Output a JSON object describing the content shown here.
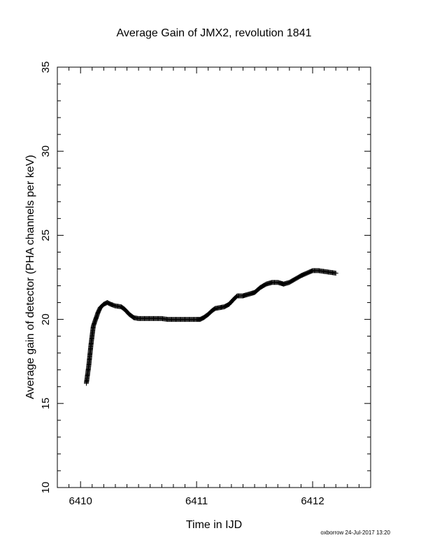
{
  "footer_text": "oxborrow 24-Jul-2017 13:20",
  "chart_data": {
    "type": "scatter",
    "marker": "plus",
    "title": "Average Gain of JMX2, revolution 1841",
    "xlabel": "Time in IJD",
    "ylabel": "Average gain of detector (PHA channels per keV)",
    "xlim": [
      6409.8,
      6412.5
    ],
    "ylim": [
      10,
      35
    ],
    "xticks": [
      6410,
      6411,
      6412
    ],
    "xtick_labels": [
      "6410",
      "6411",
      "6412"
    ],
    "yticks": [
      10,
      15,
      20,
      25,
      30,
      35
    ],
    "ytick_labels": [
      "10",
      "15",
      "20",
      "25",
      "30",
      "35"
    ],
    "grid": false,
    "series": [
      {
        "x": [
          6410.05,
          6410.07,
          6410.09,
          6410.11,
          6410.13,
          6410.15,
          6410.17,
          6410.2,
          6410.23,
          6410.26,
          6410.3,
          6410.35,
          6410.38,
          6410.42,
          6410.46,
          6410.5,
          6410.55,
          6410.6,
          6410.65,
          6410.7,
          6410.75,
          6410.8,
          6410.85,
          6410.9,
          6410.95,
          6411.0,
          6411.03,
          6411.06,
          6411.1,
          6411.13,
          6411.16,
          6411.2,
          6411.24,
          6411.28,
          6411.32,
          6411.35,
          6411.4,
          6411.45,
          6411.5,
          6411.55,
          6411.6,
          6411.65,
          6411.7,
          6411.75,
          6411.8,
          6411.85,
          6411.9,
          6411.95,
          6412.0,
          6412.05,
          6412.1,
          6412.15,
          6412.2
        ],
        "y": [
          16.2,
          17.2,
          18.5,
          19.6,
          20.0,
          20.4,
          20.7,
          20.9,
          21.0,
          20.9,
          20.8,
          20.75,
          20.6,
          20.3,
          20.1,
          20.05,
          20.05,
          20.05,
          20.05,
          20.05,
          20.0,
          20.0,
          20.0,
          20.0,
          20.0,
          20.0,
          20.0,
          20.1,
          20.3,
          20.5,
          20.65,
          20.7,
          20.75,
          20.9,
          21.2,
          21.4,
          21.4,
          21.5,
          21.6,
          21.9,
          22.1,
          22.2,
          22.2,
          22.1,
          22.2,
          22.4,
          22.6,
          22.75,
          22.9,
          22.9,
          22.85,
          22.8,
          22.75
        ]
      }
    ]
  }
}
